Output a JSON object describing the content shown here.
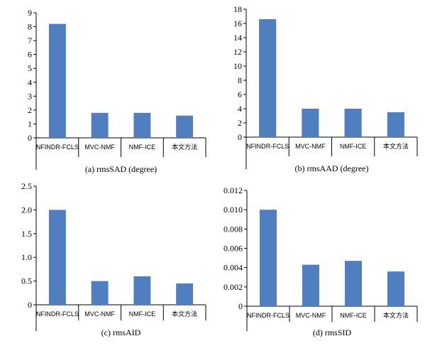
{
  "colors": {
    "bar": "#4f7fbe",
    "axis": "#000000",
    "background": "#ffffff"
  },
  "chart_data": [
    {
      "type": "bar",
      "caption": "(a) rmsSAD (degree)",
      "categories": [
        "NFINDR-FCLS",
        "MVC-NMF",
        "NMF-ICE",
        "本文方法"
      ],
      "values": [
        8.2,
        1.8,
        1.8,
        1.6
      ],
      "ylim": [
        0,
        9
      ],
      "yticks": [
        "0",
        "1",
        "2",
        "3",
        "4",
        "5",
        "6",
        "7",
        "8",
        "9"
      ],
      "grid": false
    },
    {
      "type": "bar",
      "caption": "(b) rmsAAD (degree)",
      "categories": [
        "NFINDR-FCLS",
        "MVC-NMF",
        "NMF-ICE",
        "本文方法"
      ],
      "values": [
        16.6,
        4.0,
        4.0,
        3.5
      ],
      "ylim": [
        0,
        18
      ],
      "yticks": [
        "0",
        "2",
        "4",
        "6",
        "8",
        "10",
        "12",
        "14",
        "16",
        "18"
      ],
      "grid": false
    },
    {
      "type": "bar",
      "caption": "(c) rmsAID",
      "categories": [
        "NFINDR-FCLS",
        "MVC-NMF",
        "NMF-ICE",
        "本文方法"
      ],
      "values": [
        2.0,
        0.5,
        0.6,
        0.45
      ],
      "ylim": [
        0,
        2.5
      ],
      "yticks": [
        "0",
        "0.5",
        "1.0",
        "1.5",
        "2.0",
        "2.5"
      ],
      "grid": false
    },
    {
      "type": "bar",
      "caption": "(d) rmsSID",
      "categories": [
        "NFINDR-FCLS",
        "MVC-NMF",
        "NMF-ICE",
        "本文方法"
      ],
      "values": [
        0.01,
        0.0043,
        0.0047,
        0.0036
      ],
      "ylim": [
        0,
        0.012
      ],
      "yticks": [
        "0",
        "0.002",
        "0.004",
        "0.006",
        "0.008",
        "0.010",
        "0.012"
      ],
      "grid": false
    }
  ]
}
